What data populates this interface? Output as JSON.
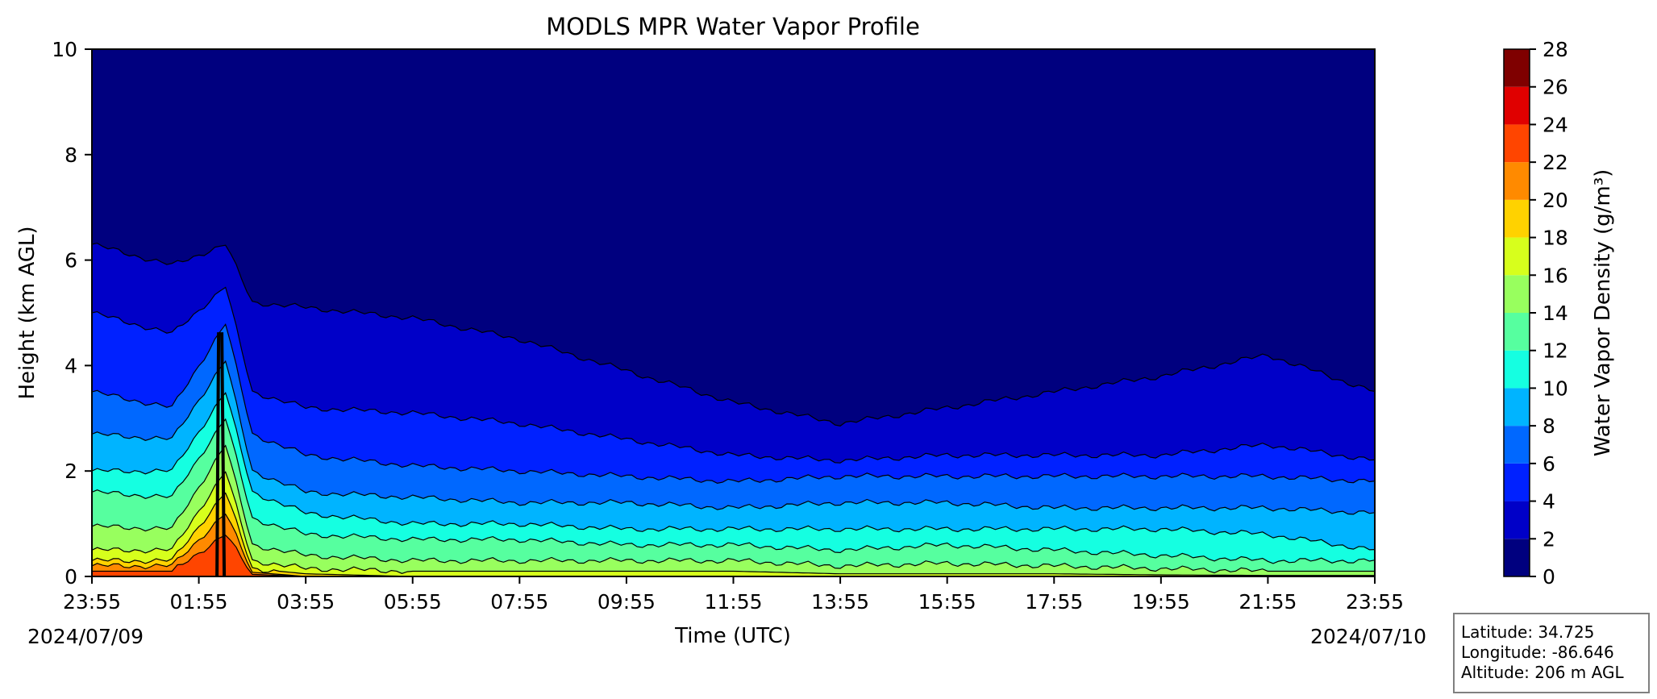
{
  "chart_data": {
    "type": "heatmap",
    "title": "MODLS MPR Water Vapor Profile",
    "xlabel": "Time (UTC)",
    "ylabel": "Height (km AGL)",
    "ylim": [
      0,
      10
    ],
    "y_ticks": [
      "0",
      "2",
      "4",
      "6",
      "8",
      "10"
    ],
    "x_ticks": [
      "23:55",
      "01:55",
      "03:55",
      "05:55",
      "07:55",
      "09:55",
      "11:55",
      "13:55",
      "15:55",
      "17:55",
      "19:55",
      "21:55",
      "23:55"
    ],
    "x_dates": {
      "start": "2024/07/09",
      "end": "2024/07/10"
    },
    "grid": false,
    "colorbar": {
      "label": "Water Vapor Density (g/m³)",
      "levels": [
        0,
        2,
        4,
        6,
        8,
        10,
        12,
        14,
        16,
        18,
        20,
        22,
        24,
        26,
        28
      ],
      "tick_labels": [
        "0",
        "2",
        "4",
        "6",
        "8",
        "10",
        "12",
        "14",
        "16",
        "18",
        "20",
        "22",
        "24",
        "26",
        "28"
      ],
      "colors": [
        "#00007f",
        "#0000c8",
        "#0021ff",
        "#0068ff",
        "#00b4ff",
        "#15ffe1",
        "#56ff9f",
        "#98ff5e",
        "#d7ff1c",
        "#ffd200",
        "#ff8a00",
        "#ff4500",
        "#e00000",
        "#7f0000"
      ]
    },
    "contour_levels_km": {
      "hours_since_start": [
        0,
        1.5,
        2.5,
        3,
        4,
        6,
        8,
        10,
        12,
        14,
        16,
        18,
        20,
        22,
        24
      ],
      "2": [
        6.3,
        5.9,
        6.3,
        5.2,
        5.1,
        4.9,
        4.5,
        3.9,
        3.3,
        2.9,
        3.2,
        3.5,
        3.8,
        4.2,
        3.5
      ],
      "4": [
        5.0,
        4.6,
        5.5,
        3.5,
        3.2,
        3.1,
        2.9,
        2.6,
        2.3,
        2.2,
        2.3,
        2.3,
        2.3,
        2.5,
        2.2
      ],
      "6": [
        3.5,
        3.2,
        4.8,
        2.7,
        2.3,
        2.1,
        2.0,
        1.9,
        1.8,
        1.9,
        1.9,
        1.9,
        1.9,
        1.9,
        1.8
      ],
      "8": [
        2.7,
        2.6,
        4.1,
        2.0,
        1.6,
        1.5,
        1.4,
        1.4,
        1.3,
        1.4,
        1.4,
        1.3,
        1.3,
        1.3,
        1.2
      ],
      "10": [
        2.0,
        2.0,
        3.5,
        1.6,
        1.2,
        1.0,
        1.0,
        0.9,
        0.9,
        0.9,
        0.9,
        0.9,
        0.9,
        0.8,
        0.5
      ],
      "12": [
        1.6,
        1.5,
        3.0,
        1.1,
        0.8,
        0.7,
        0.7,
        0.6,
        0.6,
        0.5,
        0.6,
        0.5,
        0.4,
        0.3,
        0.3
      ],
      "14": [
        0.95,
        0.9,
        2.5,
        0.6,
        0.4,
        0.3,
        0.3,
        0.3,
        0.3,
        0.2,
        0.25,
        0.2,
        0.15,
        0.1,
        0.1
      ],
      "16": [
        0.5,
        0.5,
        2.0,
        0.3,
        0.15,
        0.1,
        0.1,
        0.1,
        0.1,
        0.05,
        0.05,
        0.05,
        0.03,
        0.02,
        0.02
      ],
      "18": [
        0.3,
        0.3,
        1.6,
        0.15,
        0.05,
        0,
        0,
        0,
        0,
        0,
        0,
        0,
        0,
        0,
        0
      ],
      "20": [
        0.2,
        0.2,
        1.2,
        0.08,
        0,
        0,
        0,
        0,
        0,
        0,
        0,
        0,
        0,
        0,
        0
      ],
      "22": [
        0.1,
        0.1,
        0.8,
        0.04,
        0,
        0,
        0,
        0,
        0,
        0,
        0,
        0,
        0,
        0,
        0
      ]
    }
  },
  "info_box": {
    "latitude": "Latitude: 34.725",
    "longitude": "Longitude: -86.646",
    "altitude": "Altitude: 206 m AGL"
  }
}
